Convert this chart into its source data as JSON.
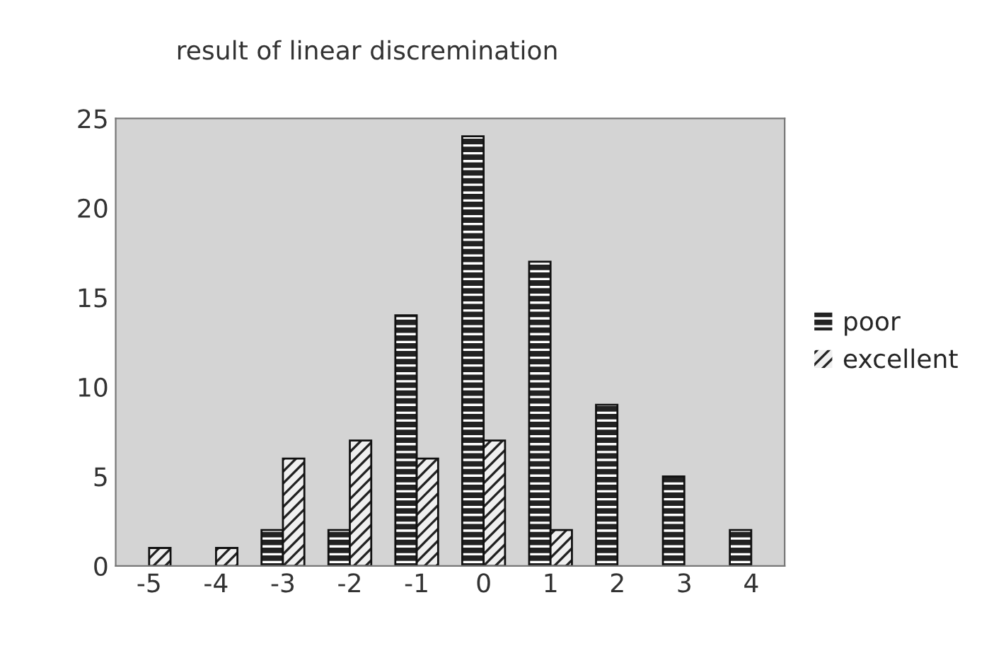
{
  "chart_data": {
    "type": "bar",
    "title": "result of linear discremination",
    "categories": [
      "-5",
      "-4",
      "-3",
      "-2",
      "-1",
      "0",
      "1",
      "2",
      "3",
      "4"
    ],
    "series": [
      {
        "name": "poor",
        "color": "#222222",
        "values": [
          0,
          0,
          2,
          2,
          14,
          24,
          17,
          9,
          5,
          2
        ]
      },
      {
        "name": "excellent",
        "color": "#f0f0f0",
        "values": [
          1,
          1,
          6,
          7,
          6,
          7,
          2,
          0,
          0,
          0
        ]
      }
    ],
    "ylim": [
      0,
      25
    ],
    "yticks": [
      0,
      5,
      10,
      15,
      20,
      25
    ],
    "grid": false,
    "legend": "right"
  }
}
